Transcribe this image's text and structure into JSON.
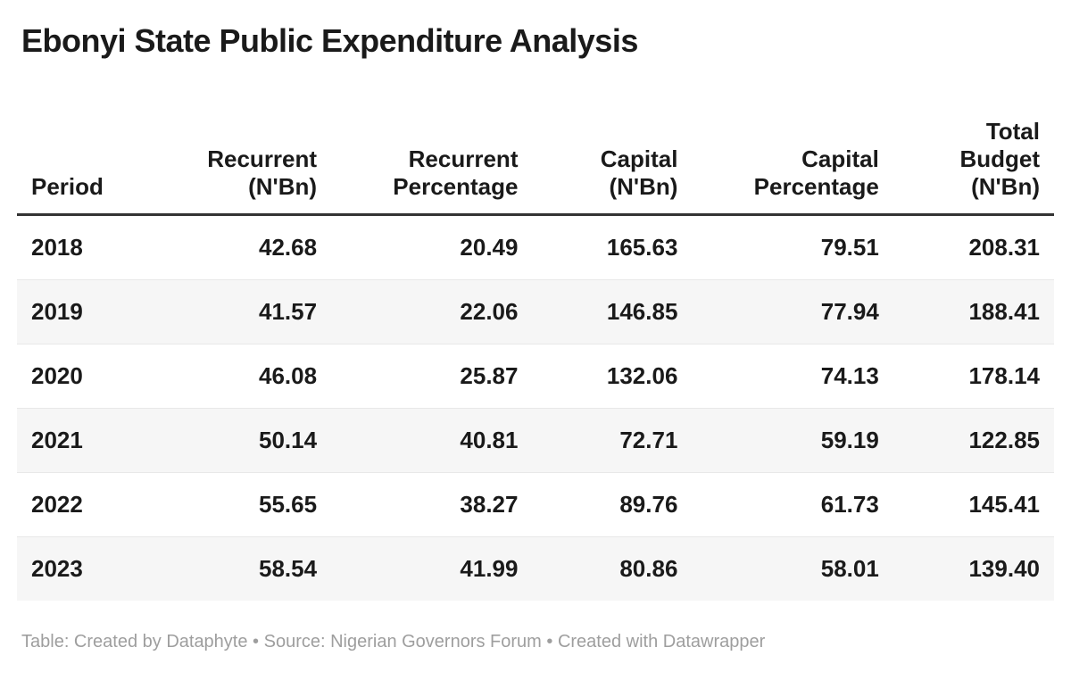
{
  "chart_data": {
    "type": "table",
    "title": "Ebonyi State Public Expenditure Analysis",
    "columns": [
      {
        "label": "Period",
        "slug": "period",
        "align": "left"
      },
      {
        "label": "Recurrent\n(N'Bn)",
        "slug": "recurrent-nbn",
        "align": "right"
      },
      {
        "label": "Recurrent\nPercentage",
        "slug": "recurrent-percentage",
        "align": "right"
      },
      {
        "label": "Capital\n(N'Bn)",
        "slug": "capital-nbn",
        "align": "right"
      },
      {
        "label": "Capital\nPercentage",
        "slug": "capital-percentage",
        "align": "right"
      },
      {
        "label": "Total\nBudget\n(N'Bn)",
        "slug": "total-budget-nbn",
        "align": "right"
      }
    ],
    "rows": [
      [
        "2018",
        "42.68",
        "20.49",
        "165.63",
        "79.51",
        "208.31"
      ],
      [
        "2019",
        "41.57",
        "22.06",
        "146.85",
        "77.94",
        "188.41"
      ],
      [
        "2020",
        "46.08",
        "25.87",
        "132.06",
        "74.13",
        "178.14"
      ],
      [
        "2021",
        "50.14",
        "40.81",
        "72.71",
        "59.19",
        "122.85"
      ],
      [
        "2022",
        "55.65",
        "38.27",
        "89.76",
        "61.73",
        "145.41"
      ],
      [
        "2023",
        "58.54",
        "41.99",
        "80.86",
        "58.01",
        "139.40"
      ]
    ],
    "attribution": "Table: Created by Dataphyte • Source: Nigerian Governors Forum • Created with Datawrapper",
    "layout_hints": {
      "striped_rows": "even rows shaded",
      "header_rule": "thick dark line under header",
      "numeric_alignment": "right"
    }
  },
  "colors": {
    "background": "#ffffff",
    "text": "#1a1a1a",
    "header-rule": "#333333",
    "row-border": "#e8e8e8",
    "stripe": "#f6f6f6",
    "footer-text": "#9e9e9e"
  }
}
